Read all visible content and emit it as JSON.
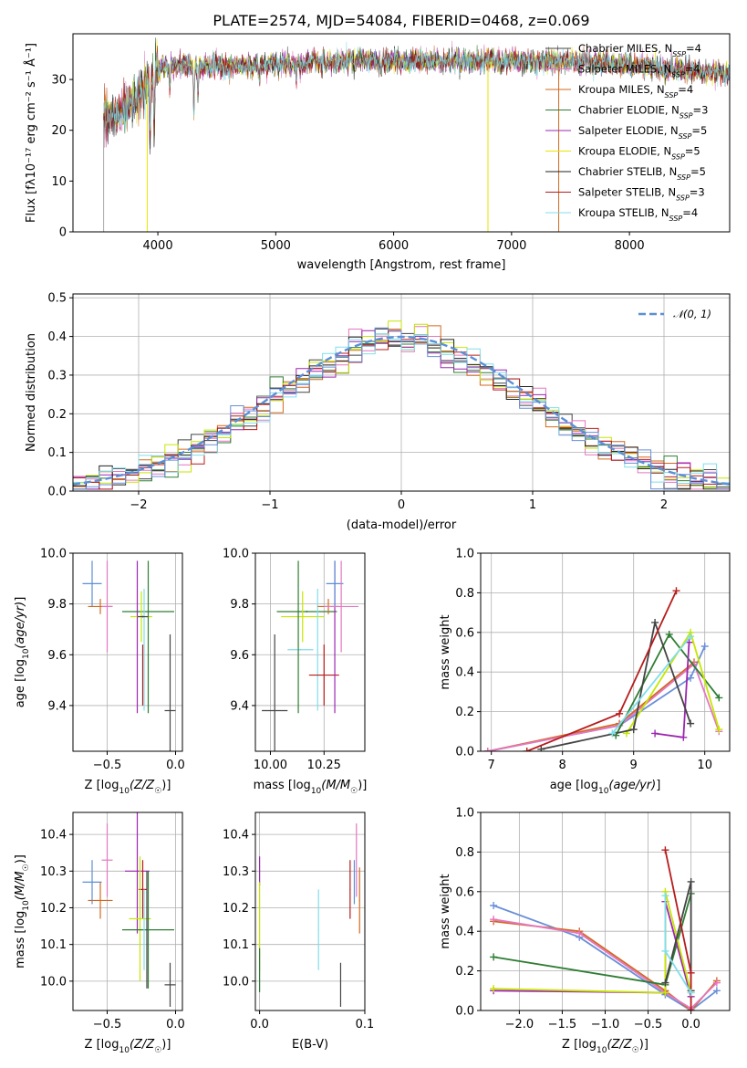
{
  "chart_data": [
    {
      "id": "spectrum",
      "type": "line",
      "title": "PLATE=2574, MJD=54084, FIBERID=0468, z=0.069",
      "xlabel": "wavelength [Angstrom, rest frame]",
      "ylabel": "Flux [fλ10⁻¹⁷ erg cm⁻² s⁻¹ Å⁻¹]",
      "xlim": [
        3280,
        8850
      ],
      "ylim": [
        0,
        39
      ],
      "xticks": [
        4000,
        5000,
        6000,
        7000,
        8000
      ],
      "yticks": [
        0,
        10,
        20,
        30
      ],
      "grid": false,
      "legend_position": "top-right",
      "x_start": 3540,
      "x_end": 8850,
      "series": [
        {
          "name": "Chabrier MILES, N",
          "sub": "SSP",
          "count": "=4",
          "color": "#444444"
        },
        {
          "name": "Salpeter MILES, N",
          "sub": "SSP",
          "count": "=4",
          "color": "#e377c2"
        },
        {
          "name": "Kroupa MILES, N",
          "sub": "SSP",
          "count": "=4",
          "color": "#d2691e"
        },
        {
          "name": "Chabrier ELODIE, N",
          "sub": "SSP",
          "count": "=3",
          "color": "#2e7d32"
        },
        {
          "name": "Salpeter ELODIE, N",
          "sub": "SSP",
          "count": "=5",
          "color": "#9c27b0"
        },
        {
          "name": "Kroupa ELODIE, N",
          "sub": "SSP",
          "count": "=5",
          "color": "#e6e600"
        },
        {
          "name": "Chabrier STELIB, N",
          "sub": "SSP",
          "count": "=5",
          "color": "#222222"
        },
        {
          "name": "Salpeter STELIB, N",
          "sub": "SSP",
          "count": "=3",
          "color": "#b71c1c"
        },
        {
          "name": "Kroupa STELIB, N",
          "sub": "SSP",
          "count": "=4",
          "color": "#80deea"
        }
      ],
      "continuum": [
        [
          3540,
          22
        ],
        [
          3700,
          24
        ],
        [
          3850,
          27
        ],
        [
          4000,
          32
        ],
        [
          4200,
          33
        ],
        [
          4500,
          32.5
        ],
        [
          5000,
          33
        ],
        [
          5500,
          33.5
        ],
        [
          6000,
          33.5
        ],
        [
          6500,
          33.5
        ],
        [
          7000,
          33.8
        ],
        [
          7500,
          33.5
        ],
        [
          8000,
          33
        ],
        [
          8850,
          31
        ]
      ],
      "absorption_lines": [
        {
          "x": 3934,
          "depth": 12
        },
        {
          "x": 3969,
          "depth": 10
        },
        {
          "x": 4102,
          "depth": 5
        },
        {
          "x": 4305,
          "depth": 9
        },
        {
          "x": 4340,
          "depth": 5
        },
        {
          "x": 4861,
          "depth": 3
        },
        {
          "x": 5175,
          "depth": 3
        },
        {
          "x": 5892,
          "depth": 2
        },
        {
          "x": 6563,
          "depth": 2
        }
      ],
      "spikes": [
        {
          "x": 3540,
          "y": 0,
          "color": "#aaaaaa"
        },
        {
          "x": 3910,
          "y": 0,
          "color": "#e6e600"
        },
        {
          "x": 6800,
          "y": 0,
          "color": "#e6e600"
        },
        {
          "x": 7400,
          "y": 0,
          "color": "#d2691e"
        }
      ]
    },
    {
      "id": "residuals",
      "type": "histogram",
      "xlabel": "(data-model)/error",
      "ylabel": "Normed distribution",
      "xlim": [
        -2.5,
        2.5
      ],
      "ylim": [
        0,
        0.51
      ],
      "xticks": [
        -2,
        -1,
        0,
        1,
        2
      ],
      "yticks": [
        0.0,
        0.1,
        0.2,
        0.3,
        0.4,
        0.5
      ],
      "grid": true,
      "legend_position": "top-right",
      "reference": {
        "name": "𝒩(0, 1)",
        "mean": 0,
        "sigma": 1,
        "color": "#5b8fd6"
      },
      "bin_width": 0.1,
      "bin_start": -2.5,
      "series_colors": [
        "#444444",
        "#e377c2",
        "#d2691e",
        "#2e7d32",
        "#9c27b0",
        "#c6e600",
        "#222222",
        "#b71c1c",
        "#80deea",
        "#6a8fd8"
      ]
    },
    {
      "id": "age-vs-Z",
      "type": "errorbar",
      "xlabel": "Z [log10(Z/Z☉)]",
      "ylabel": "age  [log10(age/yr)]",
      "xlim": [
        -0.75,
        0.05
      ],
      "ylim": [
        9.22,
        10.0
      ],
      "xticks": [
        -0.5,
        0.0
      ],
      "yticks": [
        9.4,
        9.6,
        9.8,
        10.0
      ],
      "grid": true,
      "points": [
        {
          "x": -0.61,
          "y": 9.88,
          "xerr": 0.07,
          "yerr": 0.09,
          "color": "#5b8fd6"
        },
        {
          "x": -0.55,
          "y": 9.79,
          "xerr": 0.09,
          "yerr": 0.03,
          "color": "#d2691e"
        },
        {
          "x": -0.5,
          "y": 9.79,
          "xerr": 0.04,
          "yerr": 0.18,
          "color": "#e377c2"
        },
        {
          "x": -0.28,
          "y": 9.67,
          "xerr": 0.0,
          "yerr": 0.3,
          "color": "#9c27b0"
        },
        {
          "x": -0.2,
          "y": 9.77,
          "xerr": 0.19,
          "yerr": 0.0,
          "color": "#2e7d32"
        },
        {
          "x": -0.25,
          "y": 9.75,
          "xerr": 0.08,
          "yerr": 0.1,
          "color": "#c6e600"
        },
        {
          "x": -0.24,
          "y": 9.52,
          "xerr": 0.0,
          "yerr": 0.12,
          "color": "#b71c1c"
        },
        {
          "x": -0.23,
          "y": 9.62,
          "xerr": 0.0,
          "yerr": 0.24,
          "color": "#80deea"
        },
        {
          "x": -0.24,
          "y": 9.75,
          "xerr": 0.04,
          "yerr": 0.0,
          "color": "#444444"
        },
        {
          "x": -0.2,
          "y": 9.67,
          "xerr": 0.0,
          "yerr": 0.3,
          "color": "#2e7d32"
        },
        {
          "x": -0.04,
          "y": 9.38,
          "xerr": 0.04,
          "yerr": 0.3,
          "color": "#444444"
        }
      ]
    },
    {
      "id": "age-vs-mass",
      "type": "errorbar",
      "xlabel": "mass [log10(M/M☉)]",
      "ylabel": "",
      "xlim": [
        9.93,
        10.44
      ],
      "ylim": [
        9.22,
        10.0
      ],
      "xticks": [
        10.0,
        10.25
      ],
      "yticks": [
        9.4,
        9.6,
        9.8,
        10.0
      ],
      "grid": true,
      "points": [
        {
          "x": 10.02,
          "y": 9.38,
          "xerr": 0.06,
          "yerr": 0.3,
          "color": "#444444"
        },
        {
          "x": 10.17,
          "y": 9.77,
          "xerr": 0.14,
          "yerr": 0.0,
          "color": "#2e7d32"
        },
        {
          "x": 10.15,
          "y": 9.75,
          "xerr": 0.1,
          "yerr": 0.1,
          "color": "#c6e600"
        },
        {
          "x": 10.14,
          "y": 9.62,
          "xerr": 0.06,
          "yerr": 0.0,
          "color": "#80deea"
        },
        {
          "x": 10.22,
          "y": 9.62,
          "xerr": 0.0,
          "yerr": 0.24,
          "color": "#80deea"
        },
        {
          "x": 10.13,
          "y": 9.67,
          "xerr": 0.0,
          "yerr": 0.3,
          "color": "#2e7d32"
        },
        {
          "x": 10.25,
          "y": 9.52,
          "xerr": 0.07,
          "yerr": 0.12,
          "color": "#b71c1c"
        },
        {
          "x": 10.3,
          "y": 9.67,
          "xerr": 0.0,
          "yerr": 0.3,
          "color": "#9c27b0"
        },
        {
          "x": 10.27,
          "y": 9.79,
          "xerr": 0.05,
          "yerr": 0.03,
          "color": "#d2691e"
        },
        {
          "x": 10.3,
          "y": 9.88,
          "xerr": 0.04,
          "yerr": 0.09,
          "color": "#5b8fd6"
        },
        {
          "x": 10.33,
          "y": 9.79,
          "xerr": 0.08,
          "yerr": 0.18,
          "color": "#e377c2"
        }
      ]
    },
    {
      "id": "weight-vs-age",
      "type": "line",
      "xlabel": "age  [log10(age/yr)]",
      "ylabel": "mass weight",
      "xlim": [
        6.85,
        10.35
      ],
      "ylim": [
        0,
        1.0
      ],
      "xticks": [
        7,
        8,
        9,
        10
      ],
      "yticks": [
        0.0,
        0.2,
        0.4,
        0.6,
        0.8,
        1.0
      ],
      "grid": true,
      "series": [
        {
          "color": "#6a8fd8",
          "points": [
            [
              6.95,
              0.0
            ],
            [
              8.8,
              0.13
            ],
            [
              9.8,
              0.37
            ],
            [
              10.0,
              0.53
            ]
          ]
        },
        {
          "color": "#d2691e",
          "points": [
            [
              6.95,
              0.0
            ],
            [
              8.8,
              0.14
            ],
            [
              9.85,
              0.45
            ]
          ]
        },
        {
          "color": "#e377c2",
          "points": [
            [
              6.95,
              0.0
            ],
            [
              8.8,
              0.13
            ],
            [
              9.85,
              0.44
            ],
            [
              10.2,
              0.1
            ]
          ]
        },
        {
          "color": "#2e7d32",
          "points": [
            [
              8.75,
              0.08
            ],
            [
              9.5,
              0.59
            ],
            [
              10.2,
              0.27
            ]
          ]
        },
        {
          "color": "#9c27b0",
          "points": [
            [
              9.3,
              0.09
            ],
            [
              9.7,
              0.07
            ],
            [
              9.78,
              0.55
            ]
          ]
        },
        {
          "color": "#c6e600",
          "points": [
            [
              8.9,
              0.09
            ],
            [
              9.8,
              0.6
            ],
            [
              10.2,
              0.11
            ]
          ]
        },
        {
          "color": "#444444",
          "points": [
            [
              7.7,
              0.01
            ],
            [
              9.0,
              0.11
            ],
            [
              9.3,
              0.65
            ],
            [
              9.8,
              0.14
            ]
          ]
        },
        {
          "color": "#b71c1c",
          "points": [
            [
              7.5,
              0.0
            ],
            [
              8.8,
              0.19
            ],
            [
              9.6,
              0.81
            ]
          ]
        },
        {
          "color": "#80deea",
          "points": [
            [
              8.7,
              0.09
            ],
            [
              9.8,
              0.58
            ]
          ]
        }
      ]
    },
    {
      "id": "mass-vs-Z",
      "type": "errorbar",
      "xlabel": "Z [log10(Z/Z☉)]",
      "ylabel": "mass [log10(M/M☉)]",
      "xlim": [
        -0.75,
        0.05
      ],
      "ylim": [
        9.92,
        10.46
      ],
      "xticks": [
        -0.5,
        0.0
      ],
      "yticks": [
        10.0,
        10.1,
        10.2,
        10.3,
        10.4
      ],
      "grid": true,
      "points": [
        {
          "x": -0.61,
          "y": 10.27,
          "xerr": 0.07,
          "yerr": 0.06,
          "color": "#5b8fd6"
        },
        {
          "x": -0.55,
          "y": 10.22,
          "xerr": 0.09,
          "yerr": 0.05,
          "color": "#d2691e"
        },
        {
          "x": -0.5,
          "y": 10.33,
          "xerr": 0.04,
          "yerr": 0.1,
          "color": "#e377c2"
        },
        {
          "x": -0.28,
          "y": 10.3,
          "xerr": 0.09,
          "yerr": 0.17,
          "color": "#9c27b0"
        },
        {
          "x": -0.24,
          "y": 10.25,
          "xerr": 0.03,
          "yerr": 0.08,
          "color": "#b71c1c"
        },
        {
          "x": -0.26,
          "y": 10.17,
          "xerr": 0.08,
          "yerr": 0.17,
          "color": "#c6e600"
        },
        {
          "x": -0.2,
          "y": 10.14,
          "xerr": 0.19,
          "yerr": 0.16,
          "color": "#2e7d32"
        },
        {
          "x": -0.23,
          "y": 10.14,
          "xerr": 0.0,
          "yerr": 0.11,
          "color": "#80deea"
        },
        {
          "x": -0.21,
          "y": 10.14,
          "xerr": 0.0,
          "yerr": 0.16,
          "color": "#444444"
        },
        {
          "x": -0.04,
          "y": 9.99,
          "xerr": 0.04,
          "yerr": 0.06,
          "color": "#444444"
        }
      ]
    },
    {
      "id": "mass-vs-ebv",
      "type": "errorbar",
      "xlabel": "E(B-V)",
      "ylabel": "",
      "xlim": [
        -0.004,
        0.1
      ],
      "ylim": [
        9.92,
        10.46
      ],
      "xticks": [
        0.0,
        0.1
      ],
      "yticks": [
        10.0,
        10.1,
        10.2,
        10.3,
        10.4
      ],
      "grid": true,
      "points": [
        {
          "x": 0.0,
          "y": 10.3,
          "xerr": 0.0,
          "yerr": 0.04,
          "color": "#9c27b0"
        },
        {
          "x": 0.0,
          "y": 10.15,
          "xerr": 0.0,
          "yerr": 0.12,
          "color": "#c6e600"
        },
        {
          "x": 0.0,
          "y": 10.03,
          "xerr": 0.0,
          "yerr": 0.06,
          "color": "#2e7d32"
        },
        {
          "x": 0.056,
          "y": 10.14,
          "xerr": 0.0,
          "yerr": 0.11,
          "color": "#80deea"
        },
        {
          "x": 0.077,
          "y": 9.99,
          "xerr": 0.0,
          "yerr": 0.06,
          "color": "#444444"
        },
        {
          "x": 0.086,
          "y": 10.25,
          "xerr": 0.0,
          "yerr": 0.08,
          "color": "#b71c1c"
        },
        {
          "x": 0.092,
          "y": 10.33,
          "xerr": 0.0,
          "yerr": 0.1,
          "color": "#e377c2"
        },
        {
          "x": 0.09,
          "y": 10.27,
          "xerr": 0.0,
          "yerr": 0.06,
          "color": "#5b8fd6"
        },
        {
          "x": 0.095,
          "y": 10.22,
          "xerr": 0.0,
          "yerr": 0.09,
          "color": "#d2691e"
        }
      ]
    },
    {
      "id": "weight-vs-Z",
      "type": "line",
      "xlabel": "Z [log10(Z/Z☉)]",
      "ylabel": "mass weight",
      "xlim": [
        -2.45,
        0.45
      ],
      "ylim": [
        0,
        1.0
      ],
      "xticks": [
        -2.0,
        -1.5,
        -1.0,
        -0.5,
        0.0
      ],
      "yticks": [
        0.0,
        0.2,
        0.4,
        0.6,
        0.8,
        1.0
      ],
      "grid": true,
      "series": [
        {
          "color": "#6a8fd8",
          "points": [
            [
              -2.3,
              0.53
            ],
            [
              -1.3,
              0.37
            ],
            [
              -0.3,
              0.08
            ],
            [
              0.0,
              0.0
            ],
            [
              0.3,
              0.1
            ]
          ]
        },
        {
          "color": "#d2691e",
          "points": [
            [
              -2.3,
              0.45
            ],
            [
              -1.3,
              0.4
            ],
            [
              -0.3,
              0.1
            ],
            [
              0.0,
              0.0
            ],
            [
              0.3,
              0.15
            ]
          ]
        },
        {
          "color": "#e377c2",
          "points": [
            [
              -2.3,
              0.46
            ],
            [
              -1.3,
              0.39
            ],
            [
              -0.3,
              0.09
            ],
            [
              0.0,
              0.01
            ],
            [
              0.3,
              0.14
            ]
          ]
        },
        {
          "color": "#2e7d32",
          "points": [
            [
              -2.3,
              0.27
            ],
            [
              -0.3,
              0.13
            ],
            [
              0.0,
              0.59
            ]
          ]
        },
        {
          "color": "#9c27b0",
          "points": [
            [
              -2.3,
              0.1
            ],
            [
              -0.3,
              0.09
            ],
            [
              -0.3,
              0.55
            ],
            [
              0.0,
              0.07
            ]
          ]
        },
        {
          "color": "#c6e600",
          "points": [
            [
              -2.3,
              0.11
            ],
            [
              -0.3,
              0.09
            ],
            [
              -0.3,
              0.6
            ],
            [
              0.0,
              0.09
            ]
          ]
        },
        {
          "color": "#444444",
          "points": [
            [
              -0.3,
              0.14
            ],
            [
              0.0,
              0.65
            ],
            [
              0.0,
              0.1
            ]
          ]
        },
        {
          "color": "#b71c1c",
          "points": [
            [
              -0.3,
              0.81
            ],
            [
              0.0,
              0.19
            ],
            [
              0.0,
              0.0
            ]
          ]
        },
        {
          "color": "#80deea",
          "points": [
            [
              -0.3,
              0.58
            ],
            [
              -0.3,
              0.3
            ],
            [
              0.0,
              0.09
            ]
          ]
        }
      ]
    }
  ]
}
